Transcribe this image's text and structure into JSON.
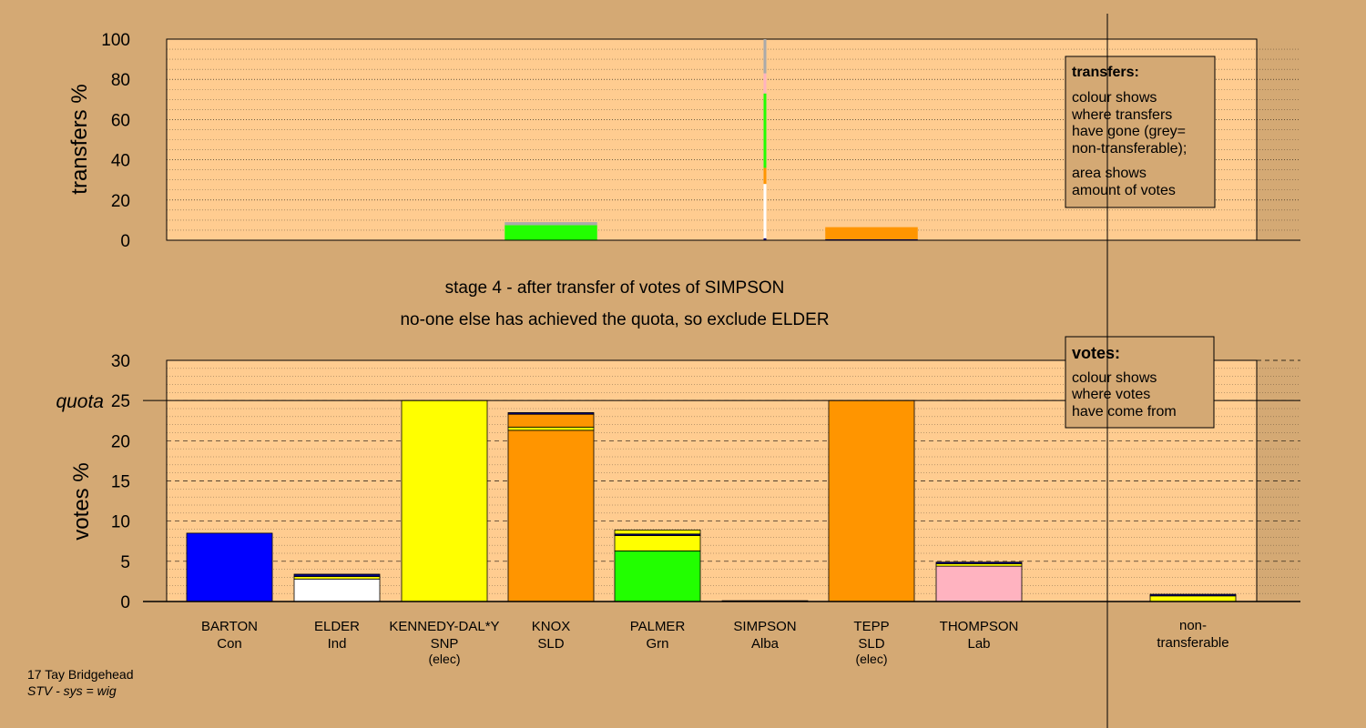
{
  "colors": {
    "background": "#d4a974",
    "panel": "#ffcc90",
    "Con": "#0000ff",
    "Ind": "#ffffff",
    "SNP": "#ffff00",
    "SLD": "#ff9500",
    "Grn": "#22ff00",
    "Lab": "#ffb3c0",
    "Alba": "#000080",
    "nontransferable": "#aaaaaa"
  },
  "caption": {
    "line1": "17 Tay Bridgehead",
    "line2": "STV - sys = wig"
  },
  "stage": {
    "line1": "stage 4 - after transfer of votes of SIMPSON",
    "line2": "no-one else has achieved the quota, so exclude ELDER"
  },
  "transfers_legend": {
    "title": "transfers:",
    "lines1": [
      "colour shows",
      "where transfers",
      "have gone (grey=",
      "non-transferable);"
    ],
    "lines2": [
      "area shows",
      "amount of votes"
    ]
  },
  "votes_legend": {
    "title": "votes:",
    "lines": [
      "colour shows",
      "where votes",
      "have come from"
    ]
  },
  "chart_data": [
    {
      "type": "bar",
      "ylabel": "transfers %",
      "ylim": [
        0,
        100
      ],
      "yticks": [
        0,
        20,
        40,
        60,
        80,
        100
      ],
      "grid": true,
      "legend_position": "top-right",
      "categories": [
        "BARTON",
        "ELDER",
        "KENNEDY-DAL*Y",
        "KNOX",
        "PALMER",
        "SIMPSON",
        "TEPP",
        "THOMPSON",
        "non-transferable"
      ],
      "widths": [
        0,
        0,
        0,
        0.5,
        0,
        0.01,
        0.5,
        0,
        0
      ],
      "stacks": [
        [],
        [],
        [],
        [
          {
            "party": "Grn",
            "value": 7.5
          },
          {
            "party": "nontransferable",
            "value": 1.5
          }
        ],
        [],
        [
          {
            "party": "Alba",
            "value": 1
          },
          {
            "party": "Ind",
            "value": 27
          },
          {
            "party": "SLD",
            "value": 8
          },
          {
            "party": "Grn",
            "value": 37
          },
          {
            "party": "Lab",
            "value": 10
          },
          {
            "party": "nontransferable",
            "value": 17
          }
        ],
        [
          {
            "party": "Alba",
            "value": 0.5
          },
          {
            "party": "SLD",
            "value": 6
          }
        ],
        [],
        []
      ]
    },
    {
      "type": "bar",
      "ylabel": "votes %",
      "ylim": [
        0,
        30
      ],
      "yticks": [
        0,
        5,
        10,
        15,
        20,
        25,
        30
      ],
      "quota": 25,
      "quota_label": "quota",
      "grid": true,
      "legend_position": "top-right",
      "categories": [
        "BARTON",
        "ELDER",
        "KENNEDY-DAL*Y",
        "KNOX",
        "PALMER",
        "SIMPSON",
        "TEPP",
        "THOMPSON",
        "non-transferable"
      ],
      "parties": [
        "Con",
        "Ind",
        "SNP",
        "SLD",
        "Grn",
        "Alba",
        "SLD",
        "Lab",
        ""
      ],
      "notes": [
        "",
        "",
        "(elec)",
        "",
        "",
        "",
        "(elec)",
        "",
        ""
      ],
      "stacks": [
        [
          {
            "party": "Con",
            "value": 8.5
          }
        ],
        [
          {
            "party": "Ind",
            "value": 2.8
          },
          {
            "party": "SNP",
            "value": 0.3
          },
          {
            "party": "Alba",
            "value": 0.3
          }
        ],
        [
          {
            "party": "SNP",
            "value": 25
          }
        ],
        [
          {
            "party": "SLD",
            "value": 21.3
          },
          {
            "party": "SNP",
            "value": 0.4
          },
          {
            "party": "SLD",
            "value": 1.6
          },
          {
            "party": "Alba",
            "value": 0.2
          }
        ],
        [
          {
            "party": "Grn",
            "value": 6.3
          },
          {
            "party": "SNP",
            "value": 1.9
          },
          {
            "party": "Alba",
            "value": 0.2
          },
          {
            "party": "SNP",
            "value": 0.5
          }
        ],
        [
          {
            "party": "Alba",
            "value": 0.1
          }
        ],
        [
          {
            "party": "SLD",
            "value": 25
          }
        ],
        [
          {
            "party": "Lab",
            "value": 4.4
          },
          {
            "party": "SNP",
            "value": 0.3
          },
          {
            "party": "Alba",
            "value": 0.2
          }
        ],
        [
          {
            "party": "SNP",
            "value": 0.7
          },
          {
            "party": "Alba",
            "value": 0.2
          }
        ]
      ]
    }
  ]
}
